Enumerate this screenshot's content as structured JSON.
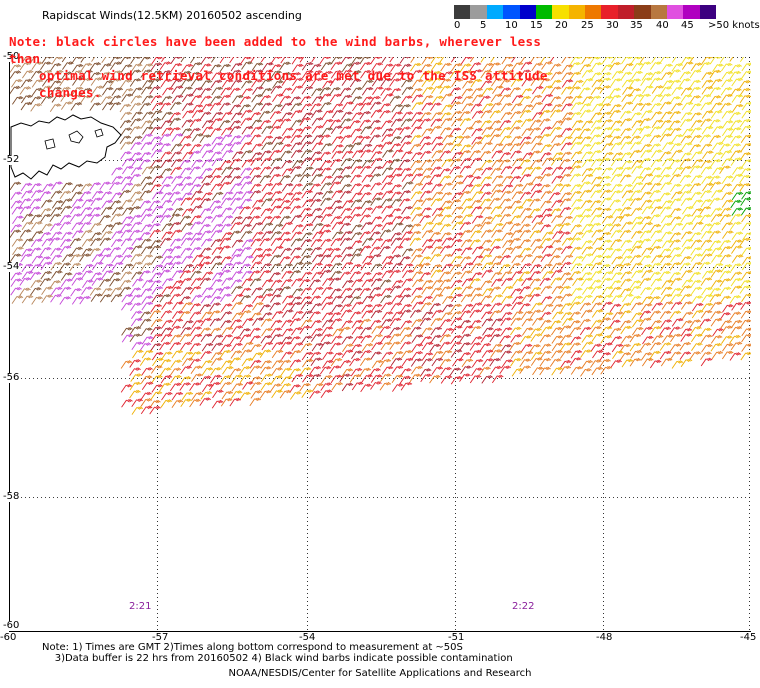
{
  "title": "Rapidscat Winds(12.5KM) 20160502 ascending",
  "note": {
    "line1": "Note: black circles have been added to the wind barbs, wherever less than",
    "line2": "optimal wind retrieval conditions are met due to the ISS attitude changes."
  },
  "colorbar": {
    "colors": [
      "#3c3c3c",
      "#9c9c9c",
      "#00aaff",
      "#0055ff",
      "#0000cc",
      "#00bb00",
      "#f7e000",
      "#f5b400",
      "#ee7800",
      "#e8202a",
      "#c01e2a",
      "#8b3d18",
      "#b87840",
      "#e050e0",
      "#b000c0",
      "#3c0080"
    ],
    "labels": [
      "0",
      "5",
      "10",
      "15",
      "20",
      "25",
      "30",
      "35",
      "40",
      "45",
      ">50 knots"
    ]
  },
  "map": {
    "lat_labels": [
      "-50",
      "-52",
      "-54",
      "-56",
      "-58",
      "-60"
    ],
    "lon_labels": [
      "-60",
      "-57",
      "-54",
      "-51",
      "-48",
      "-45"
    ],
    "time_labels": [
      "2:21",
      "2:22"
    ]
  },
  "footnote": {
    "line1": "Note: 1) Times are GMT 2)Times along bottom correspond to measurement at ~50S",
    "line2": "    3)Data buffer is 22 hrs from 20160502 4) Black wind barbs indicate possible contamination"
  },
  "credit": "NOAA/NESDIS/Center for Satellite Applications and Research"
}
